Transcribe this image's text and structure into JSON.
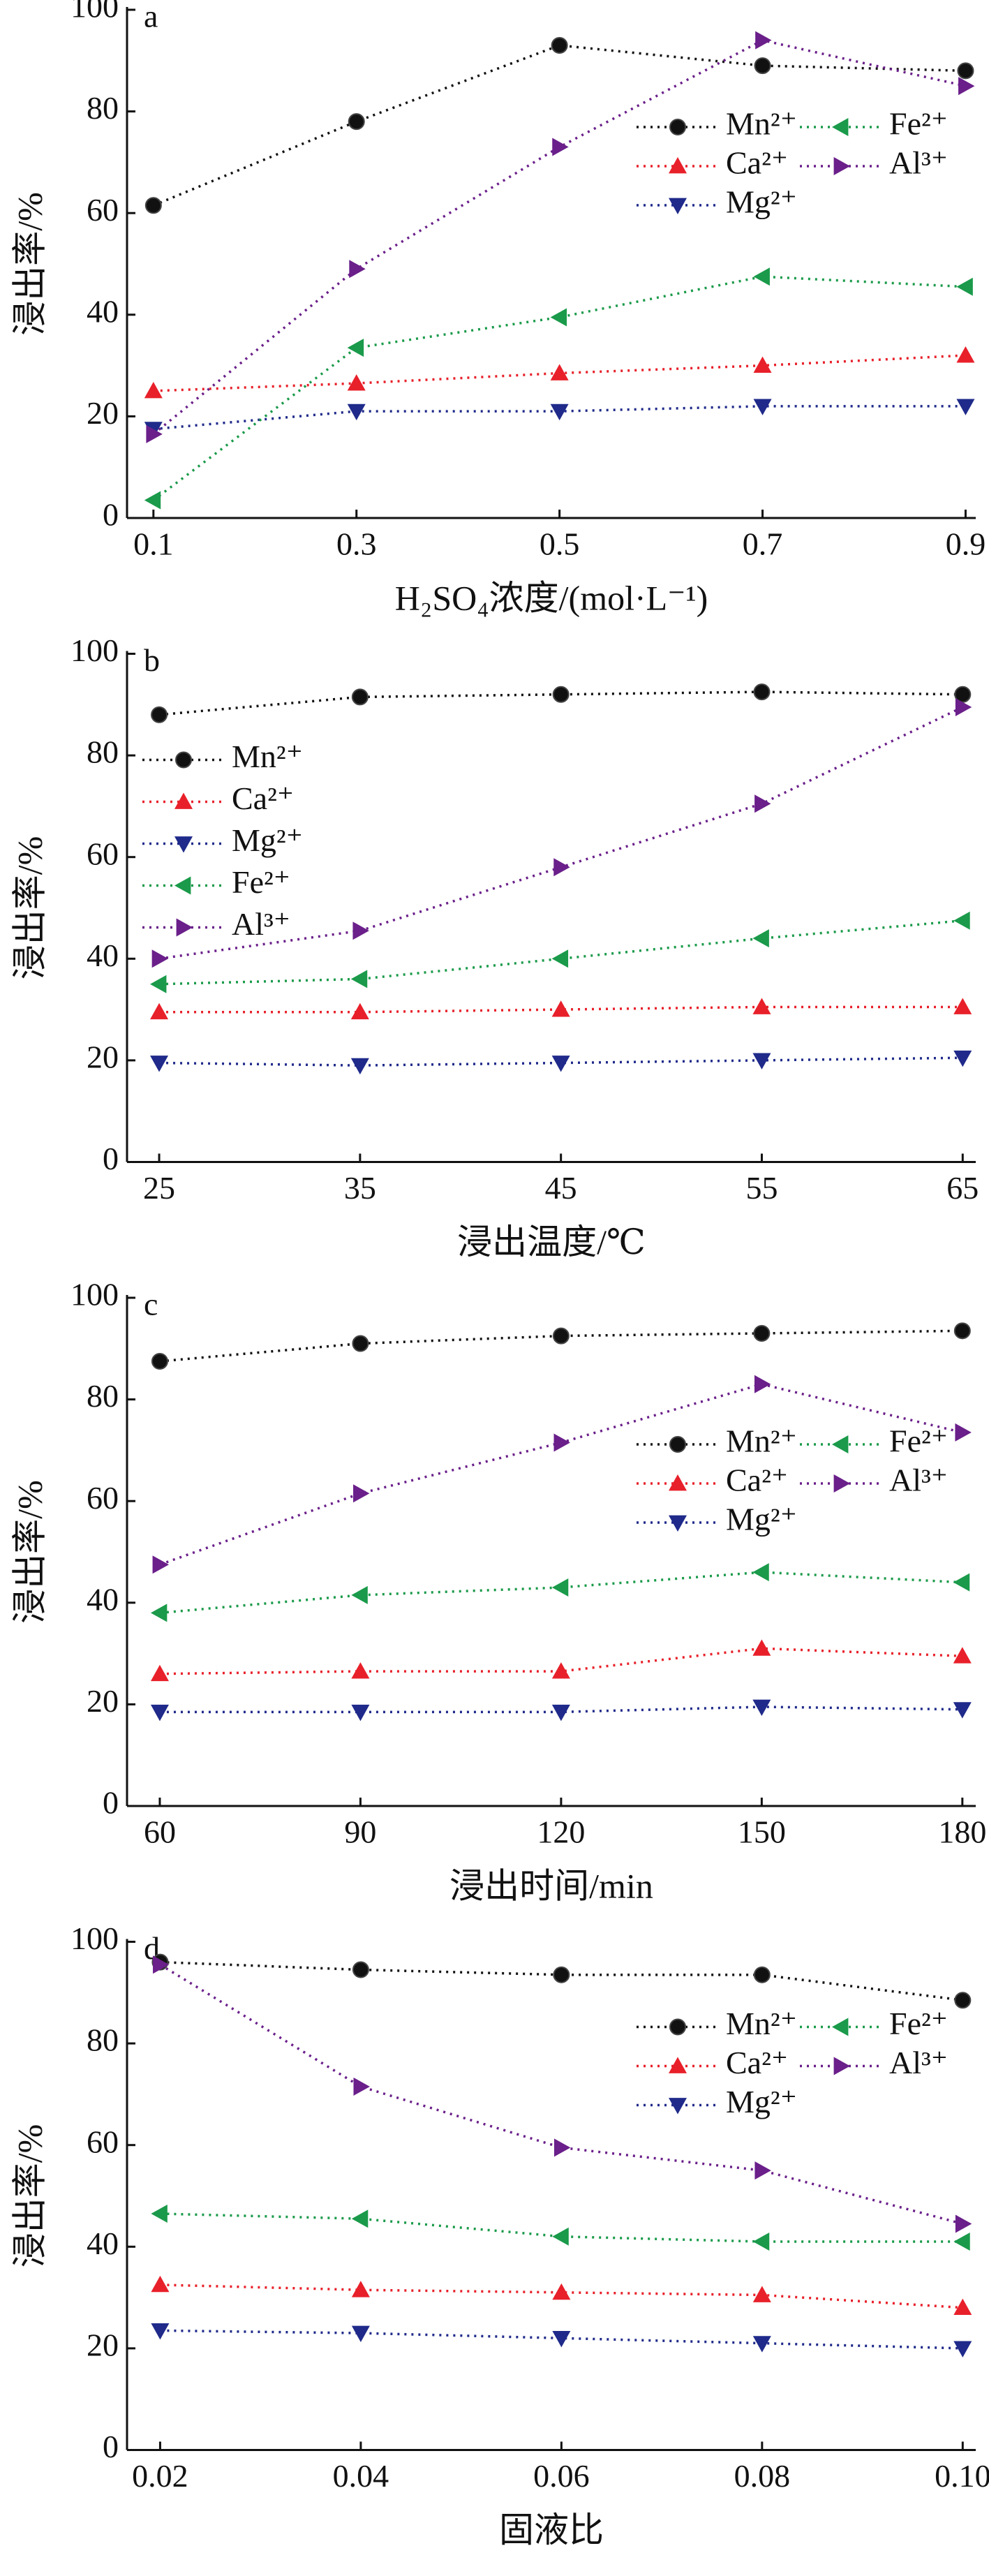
{
  "chart_data": [
    {
      "type": "line",
      "label": "a",
      "xlabel": "H₂SO₄浓度/(mol·L⁻¹)",
      "ylabel": "浸出率/%",
      "x": [
        0.1,
        0.3,
        0.5,
        0.7,
        0.9
      ],
      "xlim": [
        0.074,
        0.91
      ],
      "xticks": [
        0.1,
        0.3,
        0.5,
        0.7,
        0.9
      ],
      "ylim": [
        0,
        100
      ],
      "yticks": [
        0,
        20,
        40,
        60,
        80,
        100
      ],
      "legend": "upper right",
      "legend_ncol": 2,
      "series": [
        {
          "name": "Mn²⁺",
          "color": "#111111",
          "marker": "circle",
          "values": [
            61.5,
            78,
            93,
            89,
            88
          ]
        },
        {
          "name": "Ca²⁺",
          "color": "#e8202a",
          "marker": "triangle-up",
          "values": [
            25,
            26.5,
            28.5,
            30,
            32
          ]
        },
        {
          "name": "Mg²⁺",
          "color": "#1f2a8a",
          "marker": "triangle-down",
          "values": [
            17.5,
            21,
            21,
            22,
            22
          ]
        },
        {
          "name": "Fe²⁺",
          "color": "#1a9a4a",
          "marker": "triangle-left",
          "values": [
            3.5,
            33.5,
            39.5,
            47.5,
            45.5
          ]
        },
        {
          "name": "Al³⁺",
          "color": "#6a1f8a",
          "marker": "triangle-right",
          "values": [
            16.5,
            49,
            73,
            94,
            85
          ]
        }
      ]
    },
    {
      "type": "line",
      "label": "b",
      "xlabel": "浸出温度/℃",
      "ylabel": "浸出率/%",
      "x": [
        25,
        35,
        45,
        55,
        65
      ],
      "xlim": [
        23.4,
        65.65
      ],
      "xticks": [
        25,
        35,
        45,
        55,
        65
      ],
      "ylim": [
        0,
        100
      ],
      "yticks": [
        0,
        20,
        40,
        60,
        80,
        100
      ],
      "legend": "upper left",
      "legend_ncol": 1,
      "series": [
        {
          "name": "Mn²⁺",
          "color": "#111111",
          "marker": "circle",
          "values": [
            88,
            91.5,
            92,
            92.5,
            92
          ]
        },
        {
          "name": "Ca²⁺",
          "color": "#e8202a",
          "marker": "triangle-up",
          "values": [
            29.5,
            29.5,
            30,
            30.5,
            30.5
          ]
        },
        {
          "name": "Mg²⁺",
          "color": "#1f2a8a",
          "marker": "triangle-down",
          "values": [
            19.5,
            19,
            19.5,
            20,
            20.5
          ]
        },
        {
          "name": "Fe²⁺",
          "color": "#1a9a4a",
          "marker": "triangle-left",
          "values": [
            35,
            36,
            40,
            44,
            47.5
          ]
        },
        {
          "name": "Al³⁺",
          "color": "#6a1f8a",
          "marker": "triangle-right",
          "values": [
            40,
            45.5,
            58,
            70.5,
            89.5
          ]
        }
      ]
    },
    {
      "type": "line",
      "label": "c",
      "xlabel": "浸出时间/min",
      "ylabel": "浸出率/%",
      "x": [
        60,
        90,
        120,
        150,
        180
      ],
      "xlim": [
        55.1,
        182
      ],
      "xticks": [
        60,
        90,
        120,
        150,
        180
      ],
      "ylim": [
        0,
        100
      ],
      "yticks": [
        0,
        20,
        40,
        60,
        80,
        100
      ],
      "legend": "upper right",
      "legend_ncol": 2,
      "series": [
        {
          "name": "Mn²⁺",
          "color": "#111111",
          "marker": "circle",
          "values": [
            87.5,
            91,
            92.5,
            93,
            93.5
          ]
        },
        {
          "name": "Ca²⁺",
          "color": "#e8202a",
          "marker": "triangle-up",
          "values": [
            26,
            26.5,
            26.5,
            31,
            29.5
          ]
        },
        {
          "name": "Mg²⁺",
          "color": "#1f2a8a",
          "marker": "triangle-down",
          "values": [
            18.5,
            18.5,
            18.5,
            19.5,
            19
          ]
        },
        {
          "name": "Fe²⁺",
          "color": "#1a9a4a",
          "marker": "triangle-left",
          "values": [
            38,
            41.5,
            43,
            46,
            44
          ]
        },
        {
          "name": "Al³⁺",
          "color": "#6a1f8a",
          "marker": "triangle-right",
          "values": [
            47.5,
            61.5,
            71.5,
            83,
            73.5
          ]
        }
      ]
    },
    {
      "type": "line",
      "label": "d",
      "xlabel": "固液比",
      "ylabel": "浸出率/%",
      "x": [
        0.02,
        0.04,
        0.06,
        0.08,
        0.1
      ],
      "xlim": [
        0.0167,
        0.1013
      ],
      "xticks": [
        0.02,
        0.04,
        0.06,
        0.08,
        {
          "value": 0.1,
          "label": "0.10"
        }
      ],
      "ylim": [
        0,
        100
      ],
      "yticks": [
        0,
        20,
        40,
        60,
        80,
        100
      ],
      "legend": "upper right",
      "legend_ncol": 2,
      "series": [
        {
          "name": "Mn²⁺",
          "color": "#111111",
          "marker": "circle",
          "values": [
            96,
            94.5,
            93.5,
            93.5,
            88.5
          ]
        },
        {
          "name": "Ca²⁺",
          "color": "#e8202a",
          "marker": "triangle-up",
          "values": [
            32.5,
            31.5,
            31,
            30.5,
            28
          ]
        },
        {
          "name": "Mg²⁺",
          "color": "#1f2a8a",
          "marker": "triangle-down",
          "values": [
            23.5,
            23,
            22,
            21,
            20
          ]
        },
        {
          "name": "Fe²⁺",
          "color": "#1a9a4a",
          "marker": "triangle-left",
          "values": [
            46.5,
            45.5,
            42,
            41,
            41
          ]
        },
        {
          "name": "Al³⁺",
          "color": "#6a1f8a",
          "marker": "triangle-right",
          "values": [
            95.5,
            71.5,
            59.5,
            55,
            44.5
          ]
        }
      ]
    }
  ]
}
